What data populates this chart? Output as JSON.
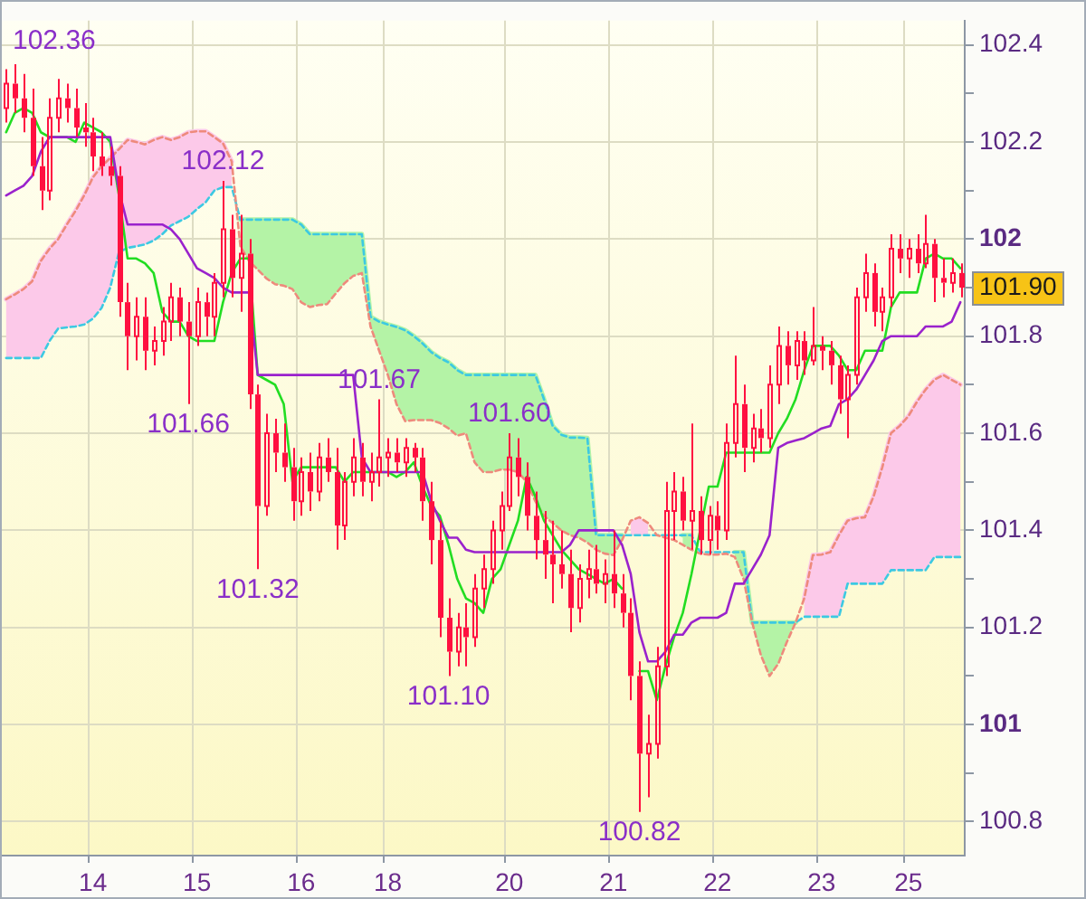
{
  "chart_data": {
    "type": "candlestick",
    "categories": [
      null,
      null,
      null,
      null,
      null,
      null,
      null,
      null,
      null,
      null,
      "14",
      null,
      null,
      null,
      null,
      null,
      null,
      null,
      null,
      null,
      null,
      null,
      "15",
      null,
      null,
      null,
      null,
      null,
      null,
      null,
      null,
      null,
      null,
      null,
      "16",
      null,
      null,
      null,
      null,
      null,
      null,
      null,
      null,
      null,
      "18",
      null,
      null,
      null,
      null,
      null,
      null,
      null,
      null,
      null,
      null,
      null,
      null,
      null,
      "20",
      null,
      null,
      null,
      null,
      null,
      null,
      null,
      null,
      null,
      null,
      null,
      "21",
      null,
      null,
      null,
      null,
      null,
      null,
      null,
      null,
      null,
      null,
      null,
      "22",
      null,
      null,
      null,
      null,
      null,
      null,
      null,
      null,
      null,
      null,
      null,
      "23",
      null,
      null,
      null,
      null,
      null,
      null,
      null,
      null,
      null,
      "25",
      null,
      null,
      null,
      null,
      null,
      null
    ],
    "color": "#ff1040",
    "ohlc": [
      [
        102.27,
        102.35,
        102.24,
        102.32
      ],
      [
        102.32,
        102.36,
        102.26,
        102.29
      ],
      [
        102.29,
        102.34,
        102.22,
        102.25
      ],
      [
        102.25,
        102.31,
        102.13,
        102.15
      ],
      [
        102.15,
        102.21,
        102.06,
        102.1
      ],
      [
        102.1,
        102.29,
        102.08,
        102.25
      ],
      [
        102.25,
        102.33,
        102.22,
        102.29
      ],
      [
        102.29,
        102.32,
        102.24,
        102.27
      ],
      [
        102.27,
        102.31,
        102.21,
        102.23
      ],
      [
        102.23,
        102.28,
        102.19,
        102.22
      ],
      [
        102.22,
        102.25,
        102.14,
        102.17
      ],
      [
        102.17,
        102.22,
        102.13,
        102.15
      ],
      [
        102.15,
        102.19,
        102.11,
        102.13
      ],
      [
        102.13,
        102.15,
        101.84,
        101.87
      ],
      [
        101.87,
        101.91,
        101.73,
        101.8
      ],
      [
        101.8,
        101.88,
        101.75,
        101.84
      ],
      [
        101.84,
        101.88,
        101.73,
        101.77
      ],
      [
        101.77,
        101.82,
        101.74,
        101.79
      ],
      [
        101.79,
        101.86,
        101.76,
        101.83
      ],
      [
        101.83,
        101.91,
        101.79,
        101.88
      ],
      [
        101.88,
        101.9,
        101.8,
        101.83
      ],
      [
        101.83,
        101.87,
        101.66,
        101.8
      ],
      [
        101.8,
        101.9,
        101.78,
        101.87
      ],
      [
        101.87,
        101.89,
        101.8,
        101.84
      ],
      [
        101.84,
        101.93,
        101.8,
        101.91
      ],
      [
        101.91,
        102.12,
        101.88,
        102.02
      ],
      [
        102.02,
        102.05,
        101.88,
        101.92
      ],
      [
        101.92,
        102.05,
        101.85,
        101.97
      ],
      [
        101.97,
        102.0,
        101.65,
        101.68
      ],
      [
        101.68,
        101.7,
        101.32,
        101.45
      ],
      [
        101.45,
        101.64,
        101.43,
        101.6
      ],
      [
        101.6,
        101.63,
        101.52,
        101.56
      ],
      [
        101.56,
        101.62,
        101.5,
        101.53
      ],
      [
        101.53,
        101.57,
        101.42,
        101.46
      ],
      [
        101.46,
        101.55,
        101.43,
        101.52
      ],
      [
        101.52,
        101.56,
        101.44,
        101.48
      ],
      [
        101.48,
        101.58,
        101.46,
        101.55
      ],
      [
        101.55,
        101.59,
        101.5,
        101.52
      ],
      [
        101.52,
        101.57,
        101.36,
        101.41
      ],
      [
        101.41,
        101.52,
        101.38,
        101.5
      ],
      [
        101.5,
        101.59,
        101.47,
        101.55
      ],
      [
        101.55,
        101.58,
        101.47,
        101.5
      ],
      [
        101.5,
        101.56,
        101.46,
        101.52
      ],
      [
        101.52,
        101.67,
        101.49,
        101.55
      ],
      [
        101.55,
        101.59,
        101.51,
        101.56
      ],
      [
        101.56,
        101.59,
        101.52,
        101.54
      ],
      [
        101.54,
        101.59,
        101.51,
        101.57
      ],
      [
        101.57,
        101.58,
        101.52,
        101.55
      ],
      [
        101.55,
        101.57,
        101.42,
        101.46
      ],
      [
        101.46,
        101.5,
        101.33,
        101.38
      ],
      [
        101.38,
        101.42,
        101.18,
        101.22
      ],
      [
        101.22,
        101.26,
        101.1,
        101.15
      ],
      [
        101.15,
        101.23,
        101.12,
        101.2
      ],
      [
        101.2,
        101.25,
        101.12,
        101.18
      ],
      [
        101.18,
        101.31,
        101.16,
        101.28
      ],
      [
        101.28,
        101.35,
        101.24,
        101.32
      ],
      [
        101.32,
        101.42,
        101.29,
        101.4
      ],
      [
        101.4,
        101.48,
        101.36,
        101.45
      ],
      [
        101.45,
        101.6,
        101.44,
        101.55
      ],
      [
        101.55,
        101.59,
        101.47,
        101.51
      ],
      [
        101.51,
        101.54,
        101.4,
        101.43
      ],
      [
        101.43,
        101.48,
        101.34,
        101.38
      ],
      [
        101.38,
        101.44,
        101.3,
        101.35
      ],
      [
        101.35,
        101.42,
        101.25,
        101.33
      ],
      [
        101.33,
        101.4,
        101.28,
        101.31
      ],
      [
        101.31,
        101.36,
        101.19,
        101.24
      ],
      [
        101.24,
        101.33,
        101.21,
        101.3
      ],
      [
        101.3,
        101.36,
        101.26,
        101.32
      ],
      [
        101.32,
        101.37,
        101.27,
        101.29
      ],
      [
        101.29,
        101.34,
        101.25,
        101.31
      ],
      [
        101.31,
        101.4,
        101.24,
        101.27
      ],
      [
        101.27,
        101.31,
        101.2,
        101.23
      ],
      [
        101.23,
        101.26,
        101.05,
        101.1
      ],
      [
        101.1,
        101.13,
        100.82,
        100.94
      ],
      [
        100.94,
        101.02,
        100.85,
        100.96
      ],
      [
        100.96,
        101.16,
        100.93,
        101.12
      ],
      [
        101.12,
        101.5,
        101.1,
        101.44
      ],
      [
        101.44,
        101.52,
        101.38,
        101.48
      ],
      [
        101.48,
        101.51,
        101.4,
        101.42
      ],
      [
        101.42,
        101.62,
        101.36,
        101.44
      ],
      [
        101.44,
        101.47,
        101.35,
        101.38
      ],
      [
        101.38,
        101.45,
        101.35,
        101.43
      ],
      [
        101.43,
        101.46,
        101.36,
        101.4
      ],
      [
        101.4,
        101.62,
        101.38,
        101.58
      ],
      [
        101.58,
        101.76,
        101.55,
        101.66
      ],
      [
        101.66,
        101.7,
        101.52,
        101.57
      ],
      [
        101.57,
        101.64,
        101.54,
        101.61
      ],
      [
        101.61,
        101.65,
        101.56,
        101.59
      ],
      [
        101.59,
        101.74,
        101.57,
        101.7
      ],
      [
        101.7,
        101.82,
        101.66,
        101.78
      ],
      [
        101.78,
        101.81,
        101.7,
        101.74
      ],
      [
        101.74,
        101.81,
        101.71,
        101.79
      ],
      [
        101.79,
        101.81,
        101.72,
        101.75
      ],
      [
        101.75,
        101.86,
        101.74,
        101.78
      ],
      [
        101.78,
        101.8,
        101.73,
        101.77
      ],
      [
        101.77,
        101.79,
        101.7,
        101.74
      ],
      [
        101.74,
        101.76,
        101.64,
        101.67
      ],
      [
        101.67,
        101.74,
        101.59,
        101.72
      ],
      [
        101.72,
        101.9,
        101.7,
        101.88
      ],
      [
        101.88,
        101.97,
        101.85,
        101.93
      ],
      [
        101.93,
        101.95,
        101.82,
        101.85
      ],
      [
        101.85,
        101.9,
        101.81,
        101.88
      ],
      [
        101.88,
        102.01,
        101.86,
        101.98
      ],
      [
        101.98,
        102.01,
        101.93,
        101.96
      ],
      [
        101.96,
        102.0,
        101.92,
        101.98
      ],
      [
        101.98,
        102.01,
        101.93,
        101.95
      ],
      [
        101.95,
        102.05,
        101.94,
        101.99
      ],
      [
        101.99,
        102.0,
        101.87,
        101.92
      ],
      [
        101.92,
        101.96,
        101.88,
        101.91
      ],
      [
        101.91,
        101.96,
        101.89,
        101.93
      ],
      [
        101.93,
        101.95,
        101.88,
        101.9
      ]
    ],
    "series": [
      {
        "type": "line",
        "color": "#b4f3a6",
        "values": [
          null,
          null,
          null,
          null,
          null,
          null,
          null,
          null,
          null,
          null,
          null,
          null,
          null,
          null,
          null,
          null,
          null,
          null,
          null,
          null,
          null,
          null,
          null,
          null,
          null,
          null,
          null,
          102.04,
          102.04,
          102.04,
          102.04,
          102.04,
          102.04,
          102.04,
          102.03,
          102.01,
          102.01,
          102.01,
          102.01,
          102.01,
          102.01,
          102.01,
          101.84,
          101.83,
          101.824,
          101.819,
          101.812,
          101.8,
          101.785,
          101.767,
          101.755,
          101.746,
          101.73,
          101.72,
          101.72,
          101.72,
          101.72,
          101.72,
          101.72,
          101.72,
          101.72,
          101.72,
          101.67,
          101.615,
          101.597,
          101.591,
          101.591,
          101.59,
          101.39,
          101.39,
          101.39,
          101.39,
          null,
          null,
          null,
          null,
          null,
          null,
          101.39,
          101.39,
          null,
          null,
          null,
          null,
          101.355,
          101.355,
          101.21,
          101.21,
          101.21,
          101.21,
          101.21,
          101.21,
          null,
          null,
          null,
          null,
          null,
          null,
          null,
          null,
          null,
          null,
          null,
          null,
          null,
          null,
          null,
          null,
          null,
          null,
          null
        ],
        "lower": [
          null,
          null,
          null,
          null,
          null,
          null,
          null,
          null,
          null,
          null,
          null,
          null,
          null,
          null,
          null,
          null,
          null,
          null,
          null,
          null,
          null,
          null,
          null,
          null,
          null,
          null,
          null,
          101.985,
          101.955,
          101.937,
          101.919,
          101.907,
          101.904,
          101.897,
          101.87,
          101.86,
          101.864,
          101.866,
          101.888,
          101.909,
          101.924,
          101.93,
          101.82,
          101.77,
          101.72,
          101.66,
          101.625,
          101.627,
          101.627,
          101.627,
          101.621,
          101.61,
          101.595,
          101.6,
          101.54,
          101.52,
          101.52,
          101.525,
          101.525,
          101.52,
          101.5,
          101.46,
          101.43,
          101.415,
          101.4,
          101.39,
          101.385,
          101.375,
          101.36,
          101.352,
          101.349,
          101.38,
          null,
          null,
          null,
          null,
          null,
          null,
          101.37,
          101.36,
          null,
          null,
          null,
          null,
          101.345,
          101.3,
          101.21,
          101.143,
          101.1,
          101.125,
          101.17,
          101.21,
          null,
          null,
          null,
          null,
          null,
          null,
          null,
          null,
          null,
          null,
          null,
          null,
          null,
          null,
          null,
          null,
          null,
          null,
          null
        ],
        "upper": [
          null,
          null,
          null,
          null,
          null,
          null,
          null,
          null,
          null,
          null,
          null,
          null,
          null,
          null,
          null,
          null,
          null,
          null,
          null,
          null,
          null,
          null,
          null,
          null,
          null,
          null,
          null,
          102.04,
          102.04,
          102.04,
          102.04,
          102.04,
          102.04,
          102.04,
          102.03,
          102.01,
          102.01,
          102.01,
          102.01,
          102.01,
          102.01,
          102.01,
          101.84,
          101.83,
          101.824,
          101.819,
          101.812,
          101.8,
          101.785,
          101.767,
          101.755,
          101.746,
          101.73,
          101.72,
          101.72,
          101.72,
          101.72,
          101.72,
          101.72,
          101.72,
          101.72,
          101.72,
          101.67,
          101.615,
          101.597,
          101.591,
          101.591,
          101.59,
          101.39,
          101.39,
          101.39,
          101.39,
          null,
          null,
          null,
          null,
          null,
          null,
          101.39,
          101.39,
          null,
          null,
          null,
          null,
          101.355,
          101.355,
          101.21,
          101.21,
          101.21,
          101.21,
          101.21,
          101.21,
          null,
          null,
          null,
          null,
          null,
          null,
          null,
          null,
          null,
          null,
          null,
          null,
          null,
          null,
          null,
          null,
          null,
          null,
          null
        ]
      },
      {
        "type": "line",
        "color": "#fcc9e9",
        "values": [
          101.876,
          101.886,
          101.897,
          101.913,
          101.955,
          101.98,
          102.0,
          102.03,
          102.058,
          102.09,
          102.127,
          102.15,
          102.167,
          102.185,
          102.204,
          102.2,
          102.195,
          102.204,
          102.21,
          102.204,
          102.21,
          102.22,
          102.222,
          102.222,
          102.21,
          102.197,
          102.16,
          null,
          null,
          null,
          null,
          null,
          null,
          null,
          null,
          null,
          null,
          null,
          null,
          null,
          null,
          null,
          null,
          null,
          null,
          null,
          null,
          null,
          null,
          null,
          null,
          null,
          null,
          null,
          null,
          null,
          null,
          null,
          null,
          null,
          null,
          null,
          null,
          null,
          null,
          null,
          null,
          null,
          null,
          null,
          null,
          null,
          null,
          null,
          null,
          null,
          null,
          null,
          null,
          null,
          null,
          null,
          null,
          null,
          null,
          null,
          null,
          null,
          null,
          null,
          null,
          null,
          101.26,
          101.349,
          101.35,
          101.355,
          101.39,
          101.42,
          101.425,
          101.427,
          101.47,
          101.53,
          101.6,
          101.615,
          101.635,
          101.665,
          101.69,
          101.71,
          101.72,
          101.71,
          101.7
        ],
        "lower": [
          101.755,
          101.755,
          101.755,
          101.755,
          101.755,
          101.79,
          101.816,
          101.818,
          101.82,
          101.824,
          101.836,
          101.858,
          101.9,
          101.973,
          101.982,
          101.985,
          101.989,
          101.997,
          102.01,
          102.028,
          102.037,
          102.046,
          102.062,
          102.076,
          102.1,
          102.107,
          102.107,
          null,
          null,
          null,
          null,
          null,
          null,
          null,
          null,
          null,
          null,
          null,
          null,
          null,
          null,
          null,
          null,
          null,
          null,
          null,
          null,
          null,
          null,
          null,
          null,
          null,
          null,
          null,
          null,
          null,
          null,
          null,
          null,
          null,
          null,
          null,
          null,
          null,
          null,
          null,
          null,
          null,
          null,
          null,
          null,
          null,
          101.39,
          101.39,
          101.39,
          null,
          null,
          null,
          null,
          null,
          null,
          null,
          null,
          null,
          null,
          null,
          null,
          null,
          null,
          null,
          null,
          null,
          101.222,
          101.222,
          101.222,
          101.222,
          101.222,
          101.29,
          101.29,
          101.29,
          101.29,
          101.29,
          101.318,
          101.318,
          101.318,
          101.318,
          101.318,
          101.345,
          101.345,
          101.345,
          101.345
        ],
        "upper": [
          101.876,
          101.886,
          101.897,
          101.913,
          101.955,
          101.98,
          102.0,
          102.03,
          102.058,
          102.09,
          102.127,
          102.15,
          102.167,
          102.185,
          102.204,
          102.2,
          102.195,
          102.204,
          102.21,
          102.204,
          102.21,
          102.22,
          102.222,
          102.222,
          102.21,
          102.197,
          102.16,
          null,
          null,
          null,
          null,
          null,
          null,
          null,
          null,
          null,
          null,
          null,
          null,
          null,
          null,
          null,
          null,
          null,
          null,
          null,
          null,
          null,
          null,
          null,
          null,
          null,
          null,
          null,
          null,
          null,
          null,
          null,
          null,
          null,
          null,
          null,
          null,
          null,
          null,
          null,
          null,
          null,
          null,
          null,
          null,
          null,
          101.42,
          101.427,
          101.415,
          null,
          null,
          null,
          null,
          null,
          null,
          null,
          null,
          null,
          null,
          null,
          null,
          null,
          null,
          null,
          null,
          null,
          101.26,
          101.349,
          101.35,
          101.355,
          101.39,
          101.42,
          101.425,
          101.427,
          101.47,
          101.53,
          101.6,
          101.615,
          101.635,
          101.665,
          101.69,
          101.71,
          101.72,
          101.71,
          101.7
        ]
      },
      {
        "type": "line",
        "color": "#3cc9e2",
        "line_style": "dashed",
        "values": [
          101.755,
          101.755,
          101.755,
          101.755,
          101.755,
          101.79,
          101.816,
          101.818,
          101.82,
          101.824,
          101.836,
          101.858,
          101.9,
          101.973,
          101.982,
          101.985,
          101.989,
          101.997,
          102.01,
          102.028,
          102.037,
          102.046,
          102.062,
          102.076,
          102.1,
          102.107,
          102.107,
          102.04,
          102.04,
          102.04,
          102.04,
          102.04,
          102.04,
          102.04,
          102.03,
          102.01,
          102.01,
          102.01,
          102.01,
          102.01,
          102.01,
          102.01,
          101.84,
          101.83,
          101.824,
          101.819,
          101.812,
          101.8,
          101.785,
          101.767,
          101.755,
          101.746,
          101.73,
          101.72,
          101.72,
          101.72,
          101.72,
          101.72,
          101.72,
          101.72,
          101.72,
          101.72,
          101.67,
          101.615,
          101.597,
          101.591,
          101.591,
          101.59,
          101.39,
          101.39,
          101.39,
          101.39,
          101.39,
          101.39,
          101.39,
          101.39,
          101.39,
          101.39,
          101.39,
          101.39,
          101.355,
          101.355,
          101.355,
          101.355,
          101.355,
          101.355,
          101.21,
          101.21,
          101.21,
          101.21,
          101.21,
          101.21,
          101.222,
          101.222,
          101.222,
          101.222,
          101.222,
          101.29,
          101.29,
          101.29,
          101.29,
          101.29,
          101.318,
          101.318,
          101.318,
          101.318,
          101.318,
          101.345,
          101.345,
          101.345,
          101.345
        ]
      },
      {
        "type": "line",
        "color": "#ee8a7c",
        "line_style": "dashed",
        "values": [
          101.876,
          101.886,
          101.897,
          101.913,
          101.955,
          101.98,
          102.0,
          102.03,
          102.058,
          102.09,
          102.127,
          102.15,
          102.167,
          102.185,
          102.204,
          102.2,
          102.195,
          102.204,
          102.21,
          102.204,
          102.21,
          102.22,
          102.222,
          102.222,
          102.21,
          102.197,
          102.16,
          101.985,
          101.955,
          101.937,
          101.919,
          101.907,
          101.904,
          101.897,
          101.87,
          101.86,
          101.864,
          101.866,
          101.888,
          101.909,
          101.924,
          101.93,
          101.82,
          101.77,
          101.72,
          101.66,
          101.625,
          101.627,
          101.627,
          101.627,
          101.621,
          101.61,
          101.595,
          101.6,
          101.54,
          101.52,
          101.52,
          101.525,
          101.525,
          101.52,
          101.5,
          101.46,
          101.43,
          101.415,
          101.4,
          101.39,
          101.385,
          101.375,
          101.36,
          101.352,
          101.349,
          101.38,
          101.42,
          101.427,
          101.415,
          101.39,
          101.385,
          101.38,
          101.37,
          101.36,
          101.352,
          101.35,
          101.35,
          101.352,
          101.345,
          101.3,
          101.21,
          101.143,
          101.1,
          101.125,
          101.17,
          101.21,
          101.26,
          101.349,
          101.35,
          101.355,
          101.39,
          101.42,
          101.425,
          101.427,
          101.47,
          101.53,
          101.6,
          101.615,
          101.635,
          101.665,
          101.69,
          101.71,
          101.72,
          101.71,
          101.7
        ]
      },
      {
        "type": "line",
        "color": "#22dd22",
        "values": [
          102.22,
          102.26,
          102.27,
          102.26,
          102.22,
          102.21,
          102.21,
          102.21,
          102.2,
          102.24,
          102.23,
          102.22,
          102.2,
          102.09,
          101.96,
          101.96,
          101.95,
          101.93,
          101.85,
          101.83,
          101.83,
          101.8,
          101.79,
          101.79,
          101.79,
          101.87,
          101.93,
          101.96,
          101.96,
          101.72,
          101.71,
          101.7,
          101.66,
          101.5,
          101.53,
          101.53,
          101.53,
          101.53,
          101.53,
          101.5,
          101.52,
          101.52,
          101.52,
          101.52,
          101.52,
          101.51,
          101.52,
          101.54,
          101.49,
          101.45,
          101.43,
          101.37,
          101.3,
          101.26,
          101.25,
          101.23,
          101.3,
          101.32,
          101.37,
          101.42,
          101.51,
          101.47,
          101.42,
          101.39,
          101.36,
          101.34,
          101.32,
          101.31,
          101.3,
          101.29,
          101.3,
          101.28,
          null,
          101.11,
          101.11,
          101.05,
          101.12,
          101.18,
          101.23,
          101.31,
          101.4,
          101.49,
          101.49,
          101.56,
          101.56,
          101.56,
          101.56,
          101.56,
          101.56,
          101.6,
          101.63,
          101.67,
          101.73,
          101.78,
          101.78,
          101.78,
          101.76,
          101.73,
          101.73,
          101.77,
          101.77,
          101.77,
          101.86,
          101.89,
          101.89,
          101.89,
          101.96,
          101.97,
          101.96,
          101.96,
          101.94
        ]
      },
      {
        "type": "line",
        "color": "#9a22cc",
        "values": [
          102.09,
          102.1,
          102.11,
          102.13,
          102.18,
          102.21,
          102.21,
          102.21,
          102.21,
          102.21,
          102.21,
          102.21,
          102.21,
          102.1,
          102.03,
          102.03,
          102.03,
          102.03,
          102.03,
          102.02,
          102.0,
          101.97,
          101.94,
          101.93,
          101.92,
          101.9,
          101.89,
          101.89,
          101.89,
          101.72,
          101.72,
          101.72,
          101.72,
          101.72,
          101.72,
          101.72,
          101.72,
          101.72,
          101.72,
          101.72,
          101.72,
          101.55,
          101.52,
          101.52,
          101.52,
          101.52,
          101.52,
          101.52,
          101.52,
          101.46,
          101.42,
          101.385,
          101.385,
          101.36,
          101.355,
          101.355,
          101.355,
          101.355,
          101.355,
          101.355,
          101.355,
          101.355,
          101.355,
          101.355,
          101.355,
          101.37,
          101.4,
          101.4,
          101.4,
          101.4,
          101.4,
          101.37,
          101.31,
          101.19,
          101.13,
          101.13,
          101.15,
          101.185,
          101.185,
          101.21,
          101.22,
          101.22,
          101.22,
          101.23,
          101.29,
          101.29,
          101.32,
          101.35,
          101.39,
          101.57,
          101.58,
          101.585,
          101.59,
          101.6,
          101.61,
          101.615,
          101.66,
          101.67,
          101.69,
          101.72,
          101.75,
          101.79,
          101.8,
          101.8,
          101.8,
          101.8,
          101.82,
          101.82,
          101.82,
          101.83,
          101.87
        ]
      }
    ],
    "ylim": [
      100.73,
      102.45
    ],
    "yticks": [
      100.8,
      {
        "value": 100.9,
        "label": null
      },
      101,
      {
        "value": 101.1,
        "label": null
      },
      101.2,
      {
        "value": 101.3,
        "label": null
      },
      101.4,
      {
        "value": 101.5,
        "label": null
      },
      101.6,
      {
        "value": 101.7,
        "label": null
      },
      101.8,
      {
        "value": 101.9,
        "label": "101.90"
      },
      102,
      {
        "value": 102.1,
        "label": null
      },
      102.2,
      {
        "value": 102.3,
        "label": null
      },
      102.4
    ],
    "grid": true,
    "annotations": [
      "102.36",
      {
        "text": "102.12",
        "y": 102.12
      },
      {
        "text": "101.66",
        "y": 101.66
      },
      {
        "text": "101.32",
        "y": 101.32
      },
      {
        "text": "101.67",
        "y": 101.67
      },
      {
        "text": "101.60",
        "y": 101.6
      },
      {
        "text": "101.10",
        "y": 101.1
      },
      {
        "text": "100.82",
        "y": 100.82
      }
    ]
  }
}
